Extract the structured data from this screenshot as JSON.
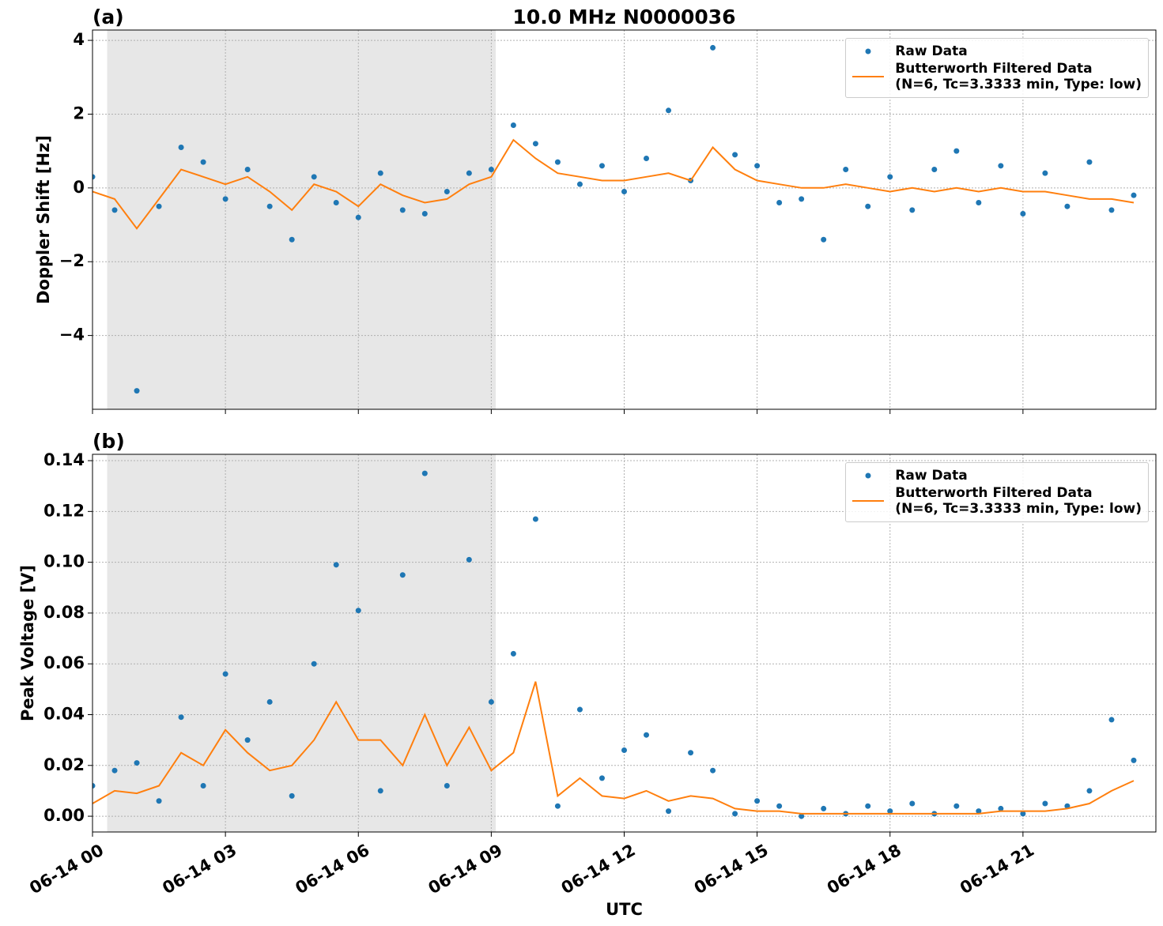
{
  "chart_data": [
    {
      "type": "line",
      "title": "10.0 MHz N0000036",
      "panel_label": "(a)",
      "ylabel": "Doppler Shift [Hz]",
      "x": [
        0,
        0.5,
        1,
        1.5,
        2,
        2.5,
        3,
        3.5,
        4,
        4.5,
        5,
        5.5,
        6,
        6.5,
        7,
        7.5,
        8,
        8.5,
        9,
        9.5,
        10,
        10.5,
        11,
        11.5,
        12,
        12.5,
        13,
        13.5,
        14,
        14.5,
        15,
        15.5,
        16,
        16.5,
        17,
        17.5,
        18,
        18.5,
        19,
        19.5,
        20,
        20.5,
        21,
        21.5,
        22,
        22.5,
        23,
        23.5
      ],
      "series": [
        {
          "name": "Raw Data",
          "color": "#1f77b4",
          "style": "points",
          "values": [
            0.3,
            -0.6,
            -5.5,
            -0.5,
            1.1,
            0.7,
            -0.3,
            0.5,
            -0.5,
            -1.4,
            0.3,
            -0.4,
            -0.8,
            0.4,
            -0.6,
            -0.7,
            -0.1,
            0.4,
            0.5,
            1.7,
            1.2,
            0.7,
            0.1,
            0.6,
            -0.1,
            0.8,
            2.1,
            0.2,
            3.8,
            0.9,
            0.6,
            -0.4,
            -0.3,
            -1.4,
            0.5,
            -0.5,
            0.3,
            -0.6,
            0.5,
            1.0,
            -0.4,
            0.6,
            -0.7,
            0.4,
            -0.5,
            0.7,
            -0.6,
            -0.2
          ]
        },
        {
          "name": "Butterworth Filtered Data\n(N=6, Tc=3.3333 min, Type: low)",
          "color": "#ff7f0e",
          "style": "line",
          "values": [
            -0.1,
            -0.3,
            -1.1,
            -0.3,
            0.5,
            0.3,
            0.1,
            0.3,
            -0.1,
            -0.6,
            0.1,
            -0.1,
            -0.5,
            0.1,
            -0.2,
            -0.4,
            -0.3,
            0.1,
            0.3,
            1.3,
            0.8,
            0.4,
            0.3,
            0.2,
            0.2,
            0.3,
            0.4,
            0.2,
            1.1,
            0.5,
            0.2,
            0.1,
            0.0,
            0.0,
            0.1,
            0.0,
            -0.1,
            0.0,
            -0.1,
            0.0,
            -0.1,
            0.0,
            -0.1,
            -0.1,
            -0.2,
            -0.3,
            -0.3,
            -0.4
          ]
        }
      ],
      "xlim": [
        0,
        24
      ],
      "xticks": [
        0,
        3,
        6,
        9,
        12,
        15,
        18,
        21
      ],
      "ylim": [
        -6,
        4.28
      ],
      "yticks": [
        {
          "value": -4,
          "label": "−4"
        },
        {
          "value": -2,
          "label": "−2"
        },
        {
          "value": 0,
          "label": "0"
        },
        {
          "value": 2,
          "label": "2"
        },
        {
          "value": 4,
          "label": "4"
        }
      ],
      "grid": true,
      "shaded_span": [
        0.33,
        9.1
      ],
      "legend": "upper right"
    },
    {
      "type": "line",
      "panel_label": "(b)",
      "ylabel": "Peak Voltage [V]",
      "xlabel": "UTC",
      "x": [
        0,
        0.5,
        1,
        1.5,
        2,
        2.5,
        3,
        3.5,
        4,
        4.5,
        5,
        5.5,
        6,
        6.5,
        7,
        7.5,
        8,
        8.5,
        9,
        9.5,
        10,
        10.5,
        11,
        11.5,
        12,
        12.5,
        13,
        13.5,
        14,
        14.5,
        15,
        15.5,
        16,
        16.5,
        17,
        17.5,
        18,
        18.5,
        19,
        19.5,
        20,
        20.5,
        21,
        21.5,
        22,
        22.5,
        23,
        23.5
      ],
      "series": [
        {
          "name": "Raw Data",
          "color": "#1f77b4",
          "style": "points",
          "values": [
            0.012,
            0.018,
            0.021,
            0.006,
            0.039,
            0.012,
            0.056,
            0.03,
            0.045,
            0.008,
            0.06,
            0.099,
            0.081,
            0.01,
            0.095,
            0.135,
            0.012,
            0.101,
            0.045,
            0.064,
            0.117,
            0.004,
            0.042,
            0.015,
            0.026,
            0.032,
            0.002,
            0.025,
            0.018,
            0.001,
            0.006,
            0.004,
            0.0,
            0.003,
            0.001,
            0.004,
            0.002,
            0.005,
            0.001,
            0.004,
            0.002,
            0.003,
            0.001,
            0.005,
            0.004,
            0.01,
            0.038,
            0.022
          ]
        },
        {
          "name": "Butterworth Filtered Data\n(N=6, Tc=3.3333 min, Type: low)",
          "color": "#ff7f0e",
          "style": "line",
          "values": [
            0.005,
            0.01,
            0.009,
            0.012,
            0.025,
            0.02,
            0.034,
            0.025,
            0.018,
            0.02,
            0.03,
            0.045,
            0.03,
            0.03,
            0.02,
            0.04,
            0.02,
            0.035,
            0.018,
            0.025,
            0.053,
            0.008,
            0.015,
            0.008,
            0.007,
            0.01,
            0.006,
            0.008,
            0.007,
            0.003,
            0.002,
            0.002,
            0.001,
            0.001,
            0.001,
            0.001,
            0.001,
            0.001,
            0.001,
            0.001,
            0.001,
            0.002,
            0.002,
            0.002,
            0.003,
            0.005,
            0.01,
            0.014
          ]
        }
      ],
      "xlim": [
        0,
        24
      ],
      "xticks": [
        {
          "value": 0,
          "label": "06-14 00"
        },
        {
          "value": 3,
          "label": "06-14 03"
        },
        {
          "value": 6,
          "label": "06-14 06"
        },
        {
          "value": 9,
          "label": "06-14 09"
        },
        {
          "value": 12,
          "label": "06-14 12"
        },
        {
          "value": 15,
          "label": "06-14 15"
        },
        {
          "value": 18,
          "label": "06-14 18"
        },
        {
          "value": 21,
          "label": "06-14 21"
        }
      ],
      "ylim": [
        -0.0062,
        0.1425
      ],
      "yticks": [
        {
          "value": 0,
          "label": "0.00"
        },
        {
          "value": 0.02,
          "label": "0.02"
        },
        {
          "value": 0.04,
          "label": "0.04"
        },
        {
          "value": 0.06,
          "label": "0.06"
        },
        {
          "value": 0.08,
          "label": "0.08"
        },
        {
          "value": 0.1,
          "label": "0.10"
        },
        {
          "value": 0.12,
          "label": "0.12"
        },
        {
          "value": 0.14,
          "label": "0.14"
        }
      ],
      "grid": true,
      "shaded_span": [
        0.33,
        9.1
      ],
      "legend": "upper right"
    }
  ]
}
